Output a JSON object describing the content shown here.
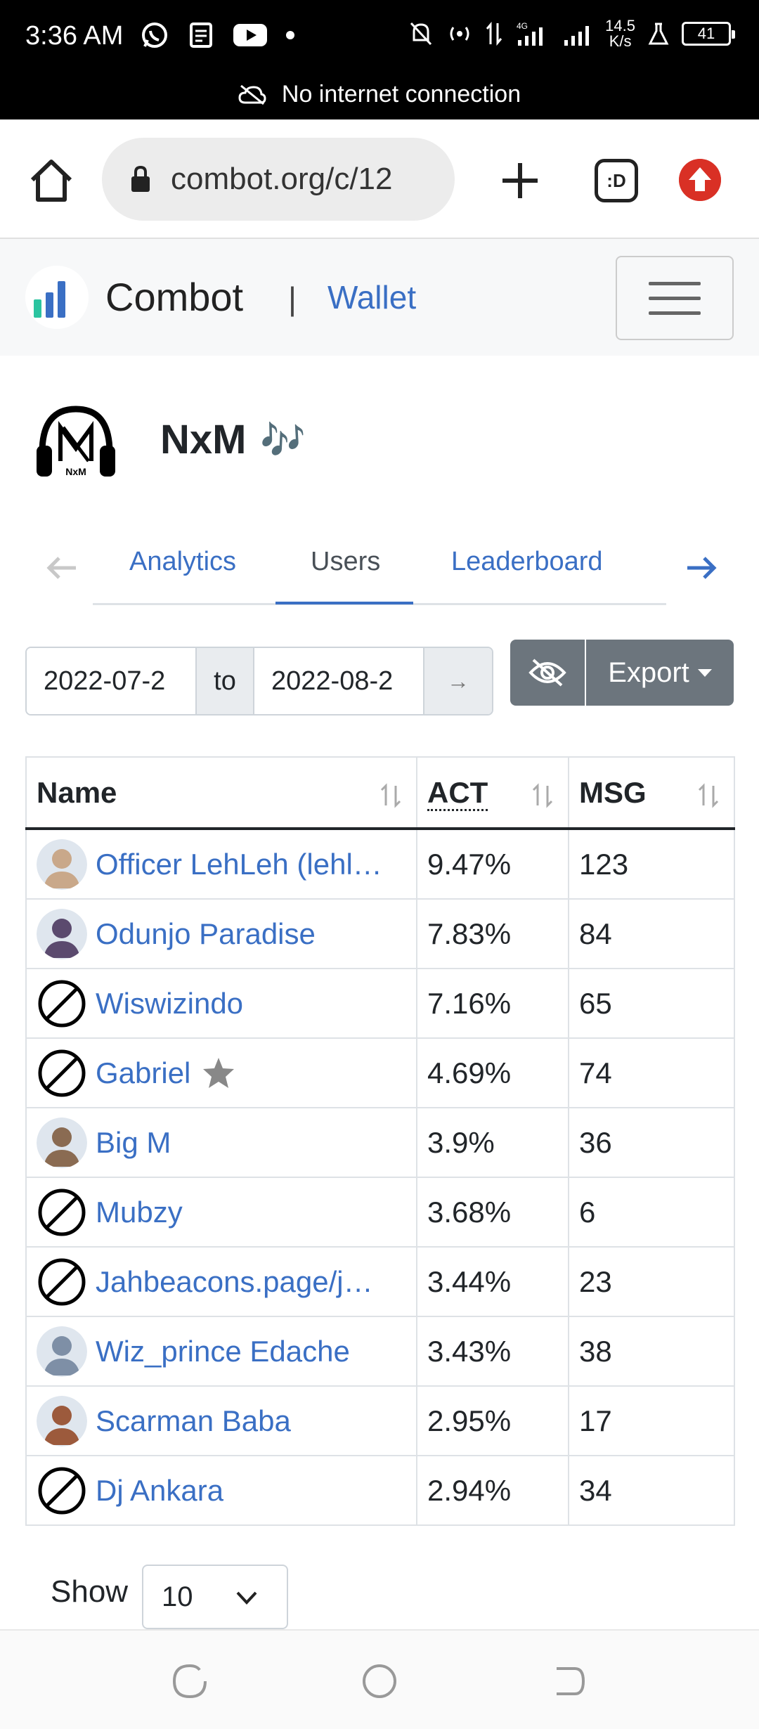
{
  "status_bar": {
    "time": "3:36 AM",
    "speed_value": "14.5",
    "speed_unit": "K/s",
    "battery": "41",
    "network_message": "No internet connection"
  },
  "browser": {
    "url": "combot.org/c/12",
    "tabs_glyph": ":D"
  },
  "navbar": {
    "brand": "Combot",
    "separator": "|",
    "wallet_link": "Wallet"
  },
  "group": {
    "name": "NxM",
    "emoji": "🎶",
    "logo_text": "NxM"
  },
  "tabs": [
    {
      "label": "Analytics",
      "active": false
    },
    {
      "label": "Users",
      "active": true
    },
    {
      "label": "Leaderboard",
      "active": false
    }
  ],
  "filter": {
    "date_from": "2022-07-2",
    "to_label": "to",
    "date_to": "2022-08-2",
    "go_arrow": "→",
    "export_label": "Export"
  },
  "table": {
    "headers": {
      "name": "Name",
      "act": "ACT",
      "msg": "MSG"
    },
    "rows": [
      {
        "name": "Officer LehLeh (lehl…",
        "act": "9.47%",
        "msg": "123",
        "avatar": "photo"
      },
      {
        "name": "Odunjo Paradise",
        "act": "7.83%",
        "msg": "84",
        "avatar": "photo"
      },
      {
        "name": "Wiswizindo",
        "act": "7.16%",
        "msg": "65",
        "avatar": "none"
      },
      {
        "name": "Gabriel",
        "act": "4.69%",
        "msg": "74",
        "avatar": "none",
        "starred": true
      },
      {
        "name": "Big M",
        "act": "3.9%",
        "msg": "36",
        "avatar": "photo"
      },
      {
        "name": "Mubzy",
        "act": "3.68%",
        "msg": "6",
        "avatar": "none"
      },
      {
        "name": "Jahbeacons.page/j…",
        "act": "3.44%",
        "msg": "23",
        "avatar": "none"
      },
      {
        "name": "Wiz_prince Edache",
        "act": "3.43%",
        "msg": "38",
        "avatar": "photo"
      },
      {
        "name": "Scarman Baba",
        "act": "2.95%",
        "msg": "17",
        "avatar": "photo"
      },
      {
        "name": "Dj Ankara",
        "act": "2.94%",
        "msg": "34",
        "avatar": "none"
      }
    ]
  },
  "pagination": {
    "show_label": "Show",
    "page_size": "10"
  },
  "colors": {
    "link": "#3a6fc4",
    "button_gray": "#6c757d",
    "update_red": "#d93025"
  }
}
